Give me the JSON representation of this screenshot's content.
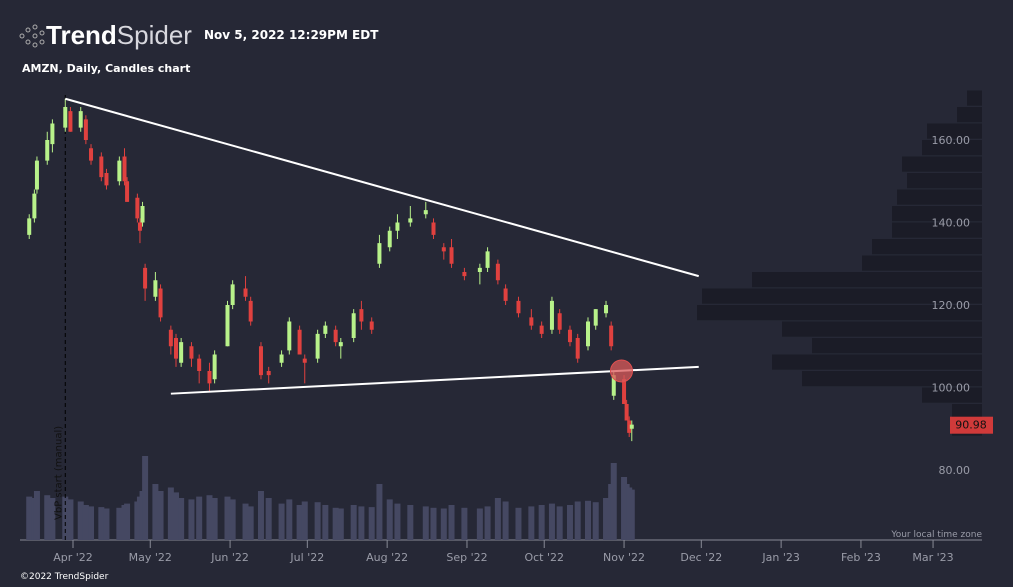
{
  "header": {
    "brand_bold": "Trend",
    "brand_light": "Spider",
    "timestamp": "Nov 5, 2022 12:29PM EDT",
    "subtitle": "AMZN, Daily, Candles chart"
  },
  "footer": {
    "copyright": "©2022 TrendSpider",
    "timezone_note": "Your local time zone"
  },
  "colors": {
    "background": "#262836",
    "up": "#b8f28a",
    "down": "#e0413f",
    "volume": "#454862",
    "profile": "#1b1c27",
    "price_tag": "#d03a3a",
    "trendline": "#ffffff"
  },
  "chart_data": {
    "type": "candlestick",
    "ticker": "AMZN",
    "interval": "Daily",
    "yaxis": {
      "ticks": [
        "160.00",
        "140.00",
        "120.00",
        "100.00",
        "80.00"
      ],
      "tick_values": [
        160,
        140,
        120,
        100,
        80
      ],
      "range": [
        72,
        177
      ]
    },
    "xaxis": {
      "ticks": [
        "Apr '22",
        "May '22",
        "Jun '22",
        "Jul '22",
        "Aug '22",
        "Sep '22",
        "Oct '22",
        "Nov '22",
        "Dec '22",
        "Jan '23",
        "Feb '23",
        "Mar '23"
      ],
      "tick_dates": [
        "2022-04-01",
        "2022-05-01",
        "2022-06-01",
        "2022-07-01",
        "2022-08-01",
        "2022-09-01",
        "2022-10-01",
        "2022-11-01",
        "2022-12-01",
        "2023-01-01",
        "2023-02-01",
        "2023-03-01"
      ]
    },
    "last_price": "90.98",
    "vbp_marker": {
      "label": "VbP start (manual)",
      "date": "2022-03-29"
    },
    "candles": [
      [
        "2022-03-15",
        137,
        142,
        136,
        141,
        62
      ],
      [
        "2022-03-17",
        141,
        148,
        140,
        147,
        60
      ],
      [
        "2022-03-18",
        148,
        156,
        147,
        155,
        70
      ],
      [
        "2022-03-22",
        155,
        162,
        154,
        160,
        64
      ],
      [
        "2022-03-24",
        159,
        165,
        157,
        164,
        60
      ],
      [
        "2022-03-29",
        163,
        170,
        162,
        168,
        62
      ],
      [
        "2022-03-31",
        167,
        168,
        162,
        162,
        58
      ],
      [
        "2022-04-04",
        163,
        168,
        162,
        167,
        55
      ],
      [
        "2022-04-06",
        165,
        166,
        159,
        160,
        50
      ],
      [
        "2022-04-08",
        158,
        159,
        154,
        155,
        48
      ],
      [
        "2022-04-12",
        156,
        157,
        150,
        151,
        47
      ],
      [
        "2022-04-14",
        152,
        153,
        148,
        149,
        45
      ],
      [
        "2022-04-19",
        150,
        156,
        149,
        155,
        46
      ],
      [
        "2022-04-21",
        156,
        158,
        149,
        150,
        50
      ],
      [
        "2022-04-22",
        150,
        151,
        145,
        145,
        52
      ],
      [
        "2022-04-26",
        146,
        147,
        140,
        141,
        55
      ],
      [
        "2022-04-27",
        140,
        141,
        135,
        138,
        62
      ],
      [
        "2022-04-28",
        140,
        145,
        139,
        144,
        70
      ],
      [
        "2022-04-29",
        129,
        130,
        121,
        124,
        120
      ],
      [
        "2022-05-03",
        122,
        128,
        121,
        126,
        80
      ],
      [
        "2022-05-05",
        124,
        125,
        116,
        117,
        70
      ],
      [
        "2022-05-09",
        114,
        115,
        108,
        110,
        75
      ],
      [
        "2022-05-11",
        112,
        113,
        105,
        107,
        68
      ],
      [
        "2022-05-13",
        106,
        112,
        105,
        111,
        60
      ],
      [
        "2022-05-17",
        110,
        111,
        105,
        107,
        58
      ],
      [
        "2022-05-20",
        107,
        108,
        101,
        104,
        62
      ],
      [
        "2022-05-24",
        104,
        106,
        99,
        101,
        64
      ],
      [
        "2022-05-26",
        102,
        109,
        101,
        108,
        60
      ],
      [
        "2022-05-31",
        110,
        121,
        110,
        120,
        62
      ],
      [
        "2022-06-02",
        120,
        126,
        119,
        125,
        58
      ],
      [
        "2022-06-07",
        124,
        127,
        121,
        122,
        52
      ],
      [
        "2022-06-09",
        121,
        122,
        115,
        116,
        48
      ],
      [
        "2022-06-13",
        110,
        111,
        102,
        103,
        70
      ],
      [
        "2022-06-16",
        104,
        105,
        101,
        103,
        60
      ],
      [
        "2022-06-21",
        106,
        109,
        105,
        108,
        52
      ],
      [
        "2022-06-24",
        109,
        117,
        108,
        116,
        58
      ],
      [
        "2022-06-28",
        114,
        115,
        108,
        108,
        50
      ],
      [
        "2022-06-30",
        107,
        108,
        101,
        106,
        55
      ],
      [
        "2022-07-05",
        107,
        114,
        106,
        113,
        54
      ],
      [
        "2022-07-08",
        113,
        116,
        112,
        115,
        50
      ],
      [
        "2022-07-12",
        114,
        115,
        110,
        111,
        46
      ],
      [
        "2022-07-14",
        110,
        112,
        107,
        111,
        45
      ],
      [
        "2022-07-19",
        112,
        119,
        111,
        118,
        50
      ],
      [
        "2022-07-22",
        119,
        121,
        114,
        116,
        48
      ],
      [
        "2022-07-26",
        116,
        117,
        113,
        114,
        47
      ],
      [
        "2022-07-29",
        130,
        137,
        129,
        135,
        80
      ],
      [
        "2022-08-02",
        134,
        139,
        133,
        138,
        58
      ],
      [
        "2022-08-05",
        138,
        142,
        136,
        140,
        52
      ],
      [
        "2022-08-10",
        140,
        144,
        139,
        141,
        50
      ],
      [
        "2022-08-16",
        142,
        145,
        141,
        143,
        48
      ],
      [
        "2022-08-19",
        140,
        141,
        136,
        137,
        46
      ],
      [
        "2022-08-23",
        134,
        135,
        131,
        133,
        45
      ],
      [
        "2022-08-26",
        134,
        136,
        129,
        130,
        50
      ],
      [
        "2022-08-31",
        128,
        129,
        126,
        127,
        46
      ],
      [
        "2022-09-06",
        128,
        130,
        125,
        129,
        45
      ],
      [
        "2022-09-09",
        129,
        134,
        128,
        133,
        48
      ],
      [
        "2022-09-13",
        130,
        131,
        125,
        126,
        60
      ],
      [
        "2022-09-16",
        124,
        125,
        120,
        121,
        55
      ],
      [
        "2022-09-21",
        121,
        122,
        117,
        118,
        46
      ],
      [
        "2022-09-26",
        117,
        119,
        114,
        115,
        48
      ],
      [
        "2022-09-30",
        115,
        116,
        112,
        113,
        50
      ],
      [
        "2022-10-04",
        114,
        122,
        113,
        121,
        52
      ],
      [
        "2022-10-07",
        118,
        119,
        113,
        114,
        48
      ],
      [
        "2022-10-11",
        114,
        115,
        110,
        111,
        50
      ],
      [
        "2022-10-14",
        112,
        113,
        106,
        107,
        55
      ],
      [
        "2022-10-18",
        110,
        117,
        109,
        116,
        56
      ],
      [
        "2022-10-21",
        115,
        119,
        114,
        119,
        54
      ],
      [
        "2022-10-25",
        118,
        121,
        117,
        120,
        60
      ],
      [
        "2022-10-27",
        115,
        116,
        109,
        110,
        80
      ],
      [
        "2022-10-28",
        98,
        104,
        97,
        103,
        110
      ],
      [
        "2022-11-01",
        102,
        103,
        96,
        96,
        90
      ],
      [
        "2022-11-02",
        96,
        97,
        92,
        92,
        80
      ],
      [
        "2022-11-03",
        92,
        93,
        88,
        89,
        75
      ],
      [
        "2022-11-04",
        90,
        92,
        87,
        91,
        72
      ]
    ],
    "trendlines": [
      {
        "from": [
          "2022-03-29",
          170
        ],
        "to": [
          "2022-11-30",
          127
        ]
      },
      {
        "from": [
          "2022-05-09",
          98.5
        ],
        "to": [
          "2022-11-30",
          105
        ]
      }
    ],
    "breakout_marker": {
      "date": "2022-10-31",
      "price": 104
    },
    "volume_profile": [
      [
        170,
        15
      ],
      [
        166,
        25
      ],
      [
        162,
        55
      ],
      [
        158,
        60
      ],
      [
        154,
        80
      ],
      [
        150,
        75
      ],
      [
        146,
        85
      ],
      [
        142,
        90
      ],
      [
        138,
        90
      ],
      [
        134,
        110
      ],
      [
        130,
        120
      ],
      [
        126,
        230
      ],
      [
        122,
        280
      ],
      [
        118,
        285
      ],
      [
        114,
        200
      ],
      [
        110,
        170
      ],
      [
        106,
        210
      ],
      [
        102,
        180
      ],
      [
        98,
        60
      ],
      [
        94,
        30
      ],
      [
        90,
        30
      ]
    ]
  }
}
